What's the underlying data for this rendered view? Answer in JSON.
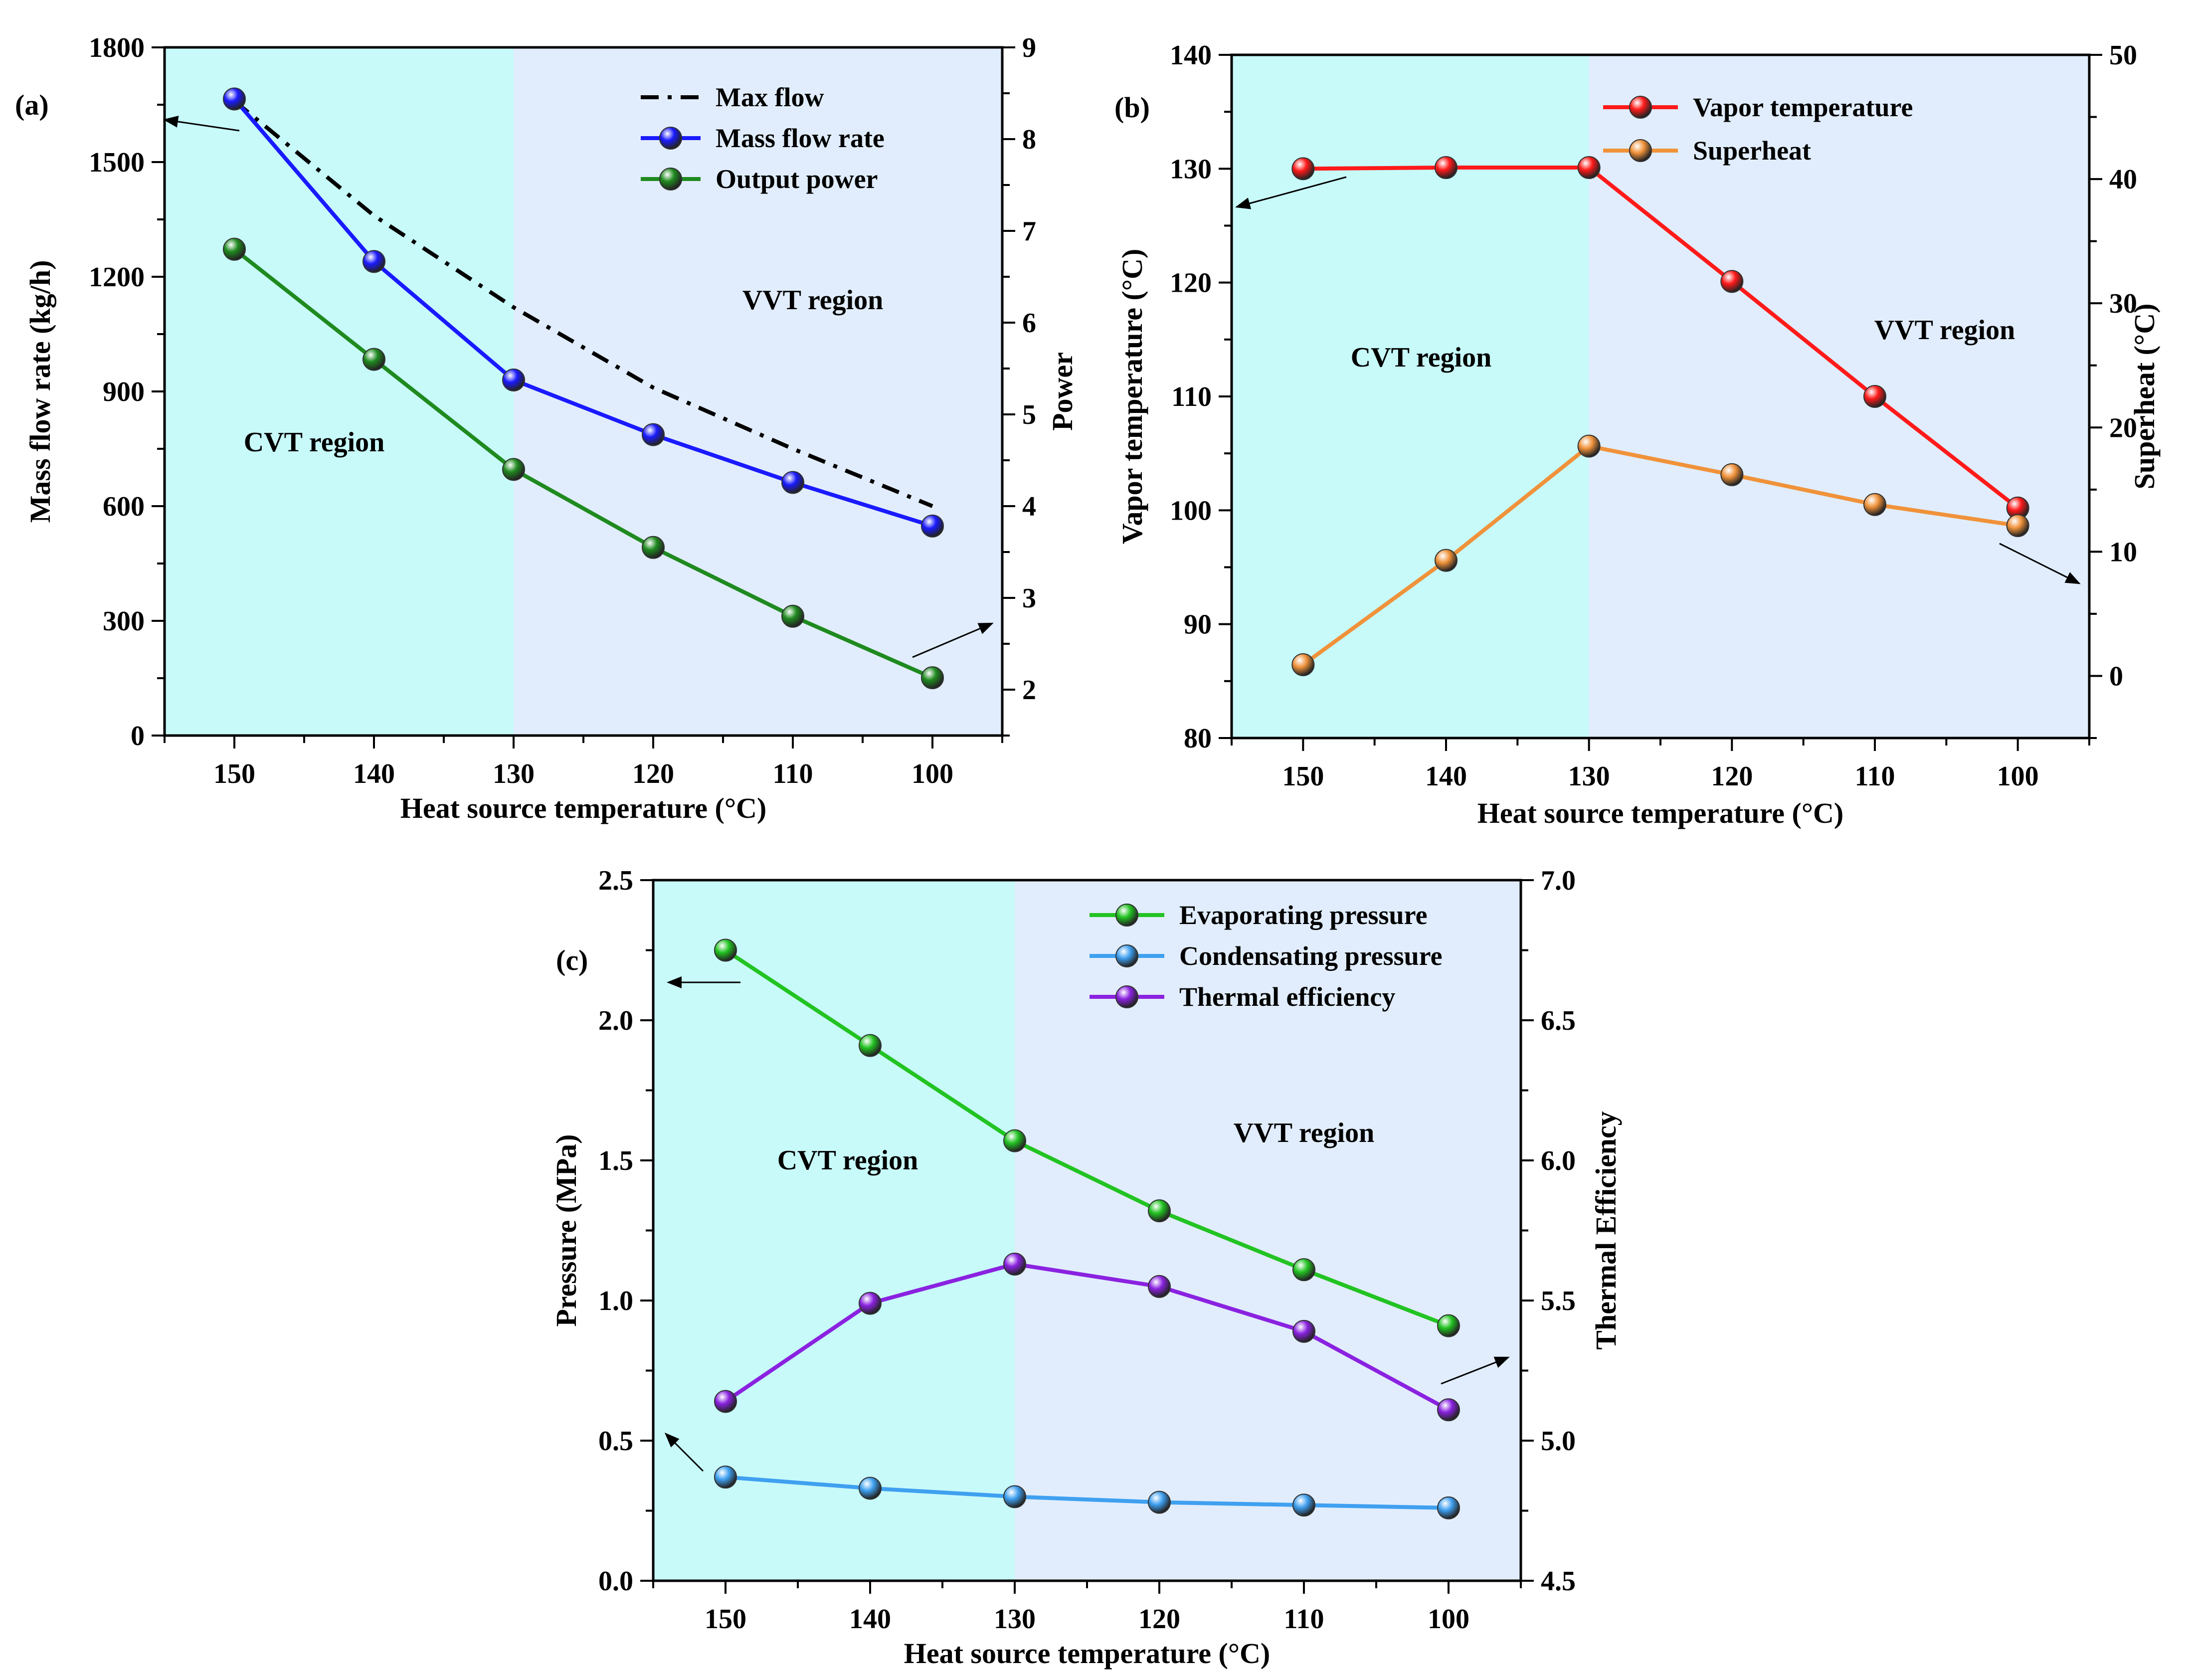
{
  "figure": {
    "colors": {
      "cvt_bg": "#c8fafa",
      "vvt_bg": "#e1edfc",
      "axis": "#000000",
      "max_flow": "#000000",
      "mass_flow": "#1a1aff",
      "output_power": "#1f8a1f",
      "vapor_temp": "#ff1a1a",
      "superheat": "#f0923a",
      "evap_pressure": "#22c322",
      "cond_pressure": "#3fa0f0",
      "thermal_eff": "#8a22e0"
    }
  },
  "chart_data": [
    {
      "id": "a",
      "type": "line",
      "panel_label": "(a)",
      "xlabel": "Heat source temperature  (°C)",
      "ylabel": "Mass flow rate (kg/h)",
      "y2label": "Power",
      "x_reversed": true,
      "xlim": [
        155,
        95
      ],
      "ylim": [
        0,
        1800
      ],
      "y2lim": [
        1.5,
        9
      ],
      "x_ticks": [
        150,
        140,
        130,
        120,
        110,
        100
      ],
      "y_ticks": [
        0,
        300,
        600,
        900,
        1200,
        1500,
        1800
      ],
      "y2_ticks": [
        2,
        3,
        4,
        5,
        6,
        7,
        8,
        9
      ],
      "region_split_x": 130,
      "regions": {
        "left": "CVT region",
        "right": "VVT region"
      },
      "series": [
        {
          "name": "Max flow",
          "axis": "y",
          "style": "dashdot",
          "markers": false,
          "color_key": "max_flow",
          "x": [
            150,
            140,
            130,
            120,
            110,
            100
          ],
          "values": [
            1660,
            1360,
            1120,
            910,
            750,
            600
          ]
        },
        {
          "name": "Mass flow rate",
          "axis": "y",
          "style": "solid",
          "markers": true,
          "color_key": "mass_flow",
          "x": [
            150,
            140,
            130,
            120,
            110,
            100
          ],
          "values": [
            1665,
            1240,
            930,
            787,
            662,
            548
          ]
        },
        {
          "name": "Output power",
          "axis": "y2",
          "style": "solid",
          "markers": true,
          "color_key": "output_power",
          "x": [
            150,
            140,
            130,
            120,
            110,
            100
          ],
          "values": [
            6.8,
            5.6,
            4.4,
            3.55,
            2.8,
            2.13
          ]
        }
      ]
    },
    {
      "id": "b",
      "type": "line",
      "panel_label": "(b)",
      "xlabel": "Heat source temperature   (°C)",
      "ylabel": "Vapor temperature  (°C)",
      "y2label": "Superheat  (°C)",
      "x_reversed": true,
      "xlim": [
        155,
        95
      ],
      "ylim": [
        80,
        140
      ],
      "y2lim": [
        -5,
        50
      ],
      "x_ticks": [
        150,
        140,
        130,
        120,
        110,
        100
      ],
      "y_ticks": [
        80,
        90,
        100,
        110,
        120,
        130,
        140
      ],
      "y2_ticks": [
        0,
        10,
        20,
        30,
        40,
        50
      ],
      "region_split_x": 130,
      "regions": {
        "left": "CVT region",
        "right": "VVT region"
      },
      "series": [
        {
          "name": "Vapor temperature",
          "axis": "y",
          "style": "solid",
          "markers": true,
          "color_key": "vapor_temp",
          "x": [
            150,
            140,
            130,
            120,
            110,
            100
          ],
          "values": [
            130,
            130.1,
            130.1,
            120.1,
            110,
            100.2
          ]
        },
        {
          "name": "Superheat",
          "axis": "y2",
          "style": "solid",
          "markers": true,
          "color_key": "superheat",
          "x": [
            150,
            140,
            130,
            120,
            110,
            100
          ],
          "values": [
            0.9,
            9.3,
            18.5,
            16.2,
            13.8,
            12.1
          ]
        }
      ]
    },
    {
      "id": "c",
      "type": "line",
      "panel_label": "(c)",
      "xlabel": "Heat source temperature  (°C)",
      "ylabel": "Pressure  (MPa)",
      "y2label": "Thermal Efficiency",
      "x_reversed": true,
      "xlim": [
        155,
        95
      ],
      "ylim": [
        0,
        2.5
      ],
      "y2lim": [
        4.5,
        7.0
      ],
      "x_ticks": [
        150,
        140,
        130,
        120,
        110,
        100
      ],
      "y_ticks": [
        0.0,
        0.5,
        1.0,
        1.5,
        2.0,
        2.5
      ],
      "y_tick_labels": [
        "0.0",
        "0.5",
        "1.0",
        "1.5",
        "2.0",
        "2.5"
      ],
      "y2_ticks": [
        4.5,
        5.0,
        5.5,
        6.0,
        6.5,
        7.0
      ],
      "y2_tick_labels": [
        "4.5",
        "5.0",
        "5.5",
        "6.0",
        "6.5",
        "7.0"
      ],
      "region_split_x": 130,
      "regions": {
        "left": "CVT region",
        "right": "VVT  region"
      },
      "series": [
        {
          "name": "Evaporating pressure",
          "axis": "y",
          "style": "solid",
          "markers": true,
          "color_key": "evap_pressure",
          "x": [
            150,
            140,
            130,
            120,
            110,
            100
          ],
          "values": [
            2.25,
            1.91,
            1.57,
            1.32,
            1.11,
            0.91
          ]
        },
        {
          "name": "Condensating pressure",
          "axis": "y",
          "style": "solid",
          "markers": true,
          "color_key": "cond_pressure",
          "x": [
            150,
            140,
            130,
            120,
            110,
            100
          ],
          "values": [
            0.37,
            0.33,
            0.3,
            0.28,
            0.27,
            0.26
          ]
        },
        {
          "name": "Thermal efficiency",
          "axis": "y2",
          "style": "solid",
          "markers": true,
          "color_key": "thermal_eff",
          "x": [
            150,
            140,
            130,
            120,
            110,
            100
          ],
          "values": [
            5.14,
            5.49,
            5.63,
            5.55,
            5.39,
            5.11
          ]
        }
      ]
    }
  ]
}
